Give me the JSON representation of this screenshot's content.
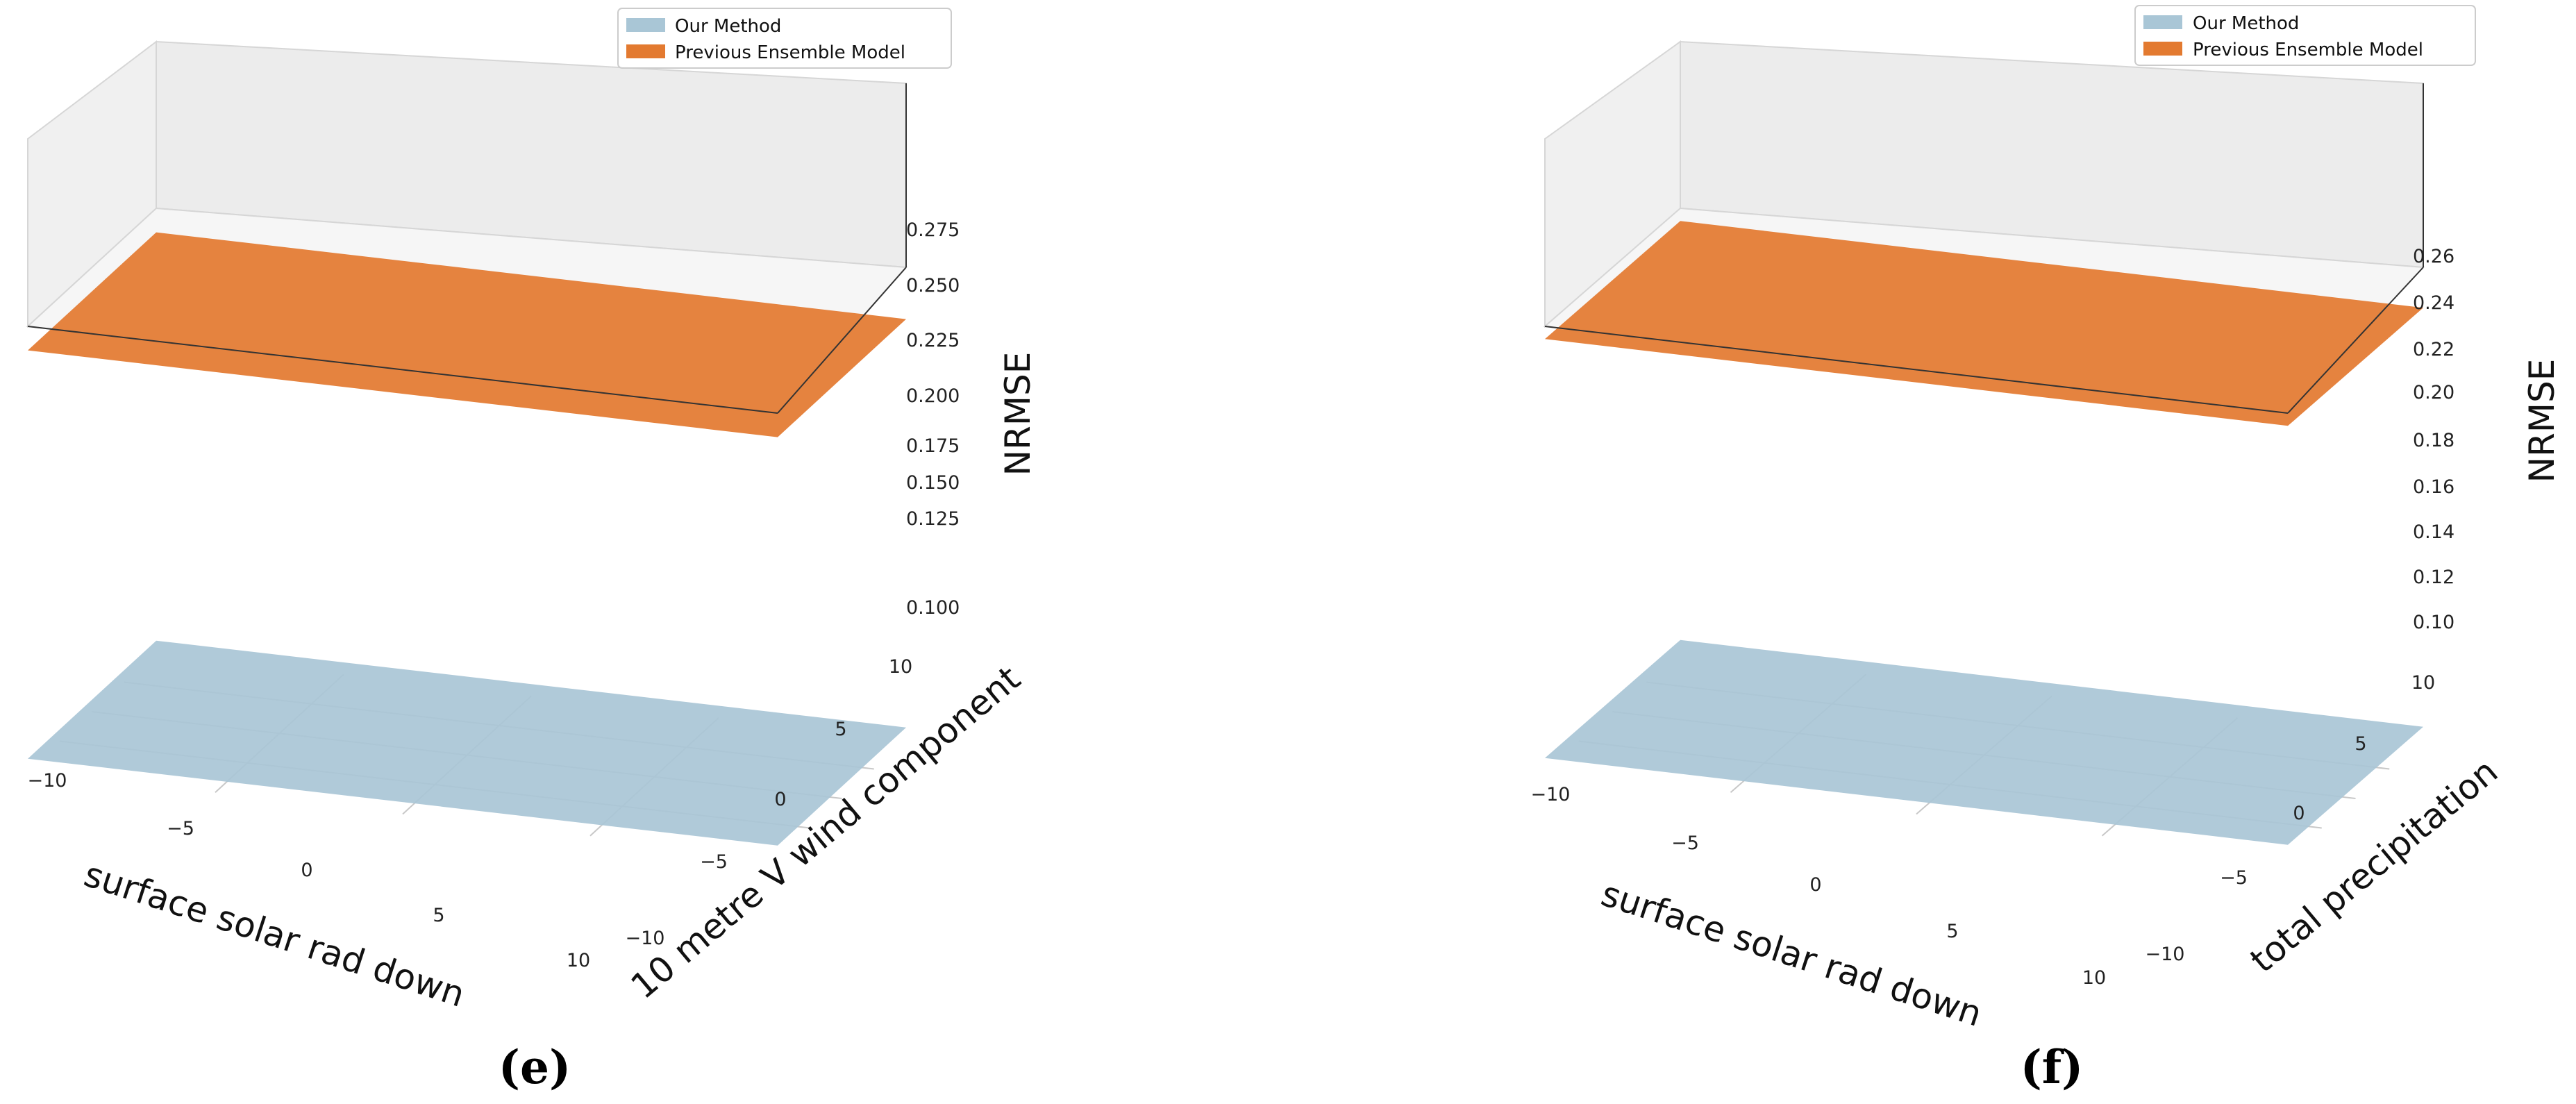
{
  "chart_data": [
    {
      "panel": "(e)",
      "type": "surface3d",
      "legend": [
        "Our Method",
        "Previous Ensemble Model"
      ],
      "legend_location": "top-center",
      "xlabel": "surface solar rad down",
      "ylabel": "10 metre V wind component",
      "zlabel": "NRMSE",
      "x_ticks": [
        "−10",
        "−5",
        "0",
        "5",
        "10"
      ],
      "y_ticks": [
        "−10",
        "−5",
        "0",
        "5",
        "10"
      ],
      "z_ticks": [
        "0.100",
        "0.125",
        "0.150",
        "0.175",
        "0.200",
        "0.225",
        "0.250",
        "0.275"
      ],
      "xlim": [
        -10,
        10
      ],
      "ylim": [
        -10,
        10
      ],
      "zlim": [
        0.095,
        0.28
      ],
      "series": [
        {
          "name": "Our Method",
          "color": "#a9c6d6",
          "z": 0.1
        },
        {
          "name": "Previous Ensemble Model",
          "color": "#e37a30",
          "z": 0.27
        }
      ]
    },
    {
      "panel": "(f)",
      "type": "surface3d",
      "legend": [
        "Our Method",
        "Previous Ensemble Model"
      ],
      "legend_location": "top-center",
      "xlabel": "surface solar rad down",
      "ylabel": "total precipitation",
      "zlabel": "NRMSE",
      "x_ticks": [
        "−10",
        "−5",
        "0",
        "5",
        "10"
      ],
      "y_ticks": [
        "−10",
        "−5",
        "0",
        "5",
        "10"
      ],
      "z_ticks": [
        "0.10",
        "0.12",
        "0.14",
        "0.16",
        "0.18",
        "0.20",
        "0.22",
        "0.24",
        "0.26"
      ],
      "xlim": [
        -10,
        10
      ],
      "ylim": [
        -10,
        10
      ],
      "zlim": [
        0.095,
        0.27
      ],
      "series": [
        {
          "name": "Our Method",
          "color": "#a9c6d6",
          "z": 0.1
        },
        {
          "name": "Previous Ensemble Model",
          "color": "#e37a30",
          "z": 0.265
        }
      ]
    }
  ]
}
